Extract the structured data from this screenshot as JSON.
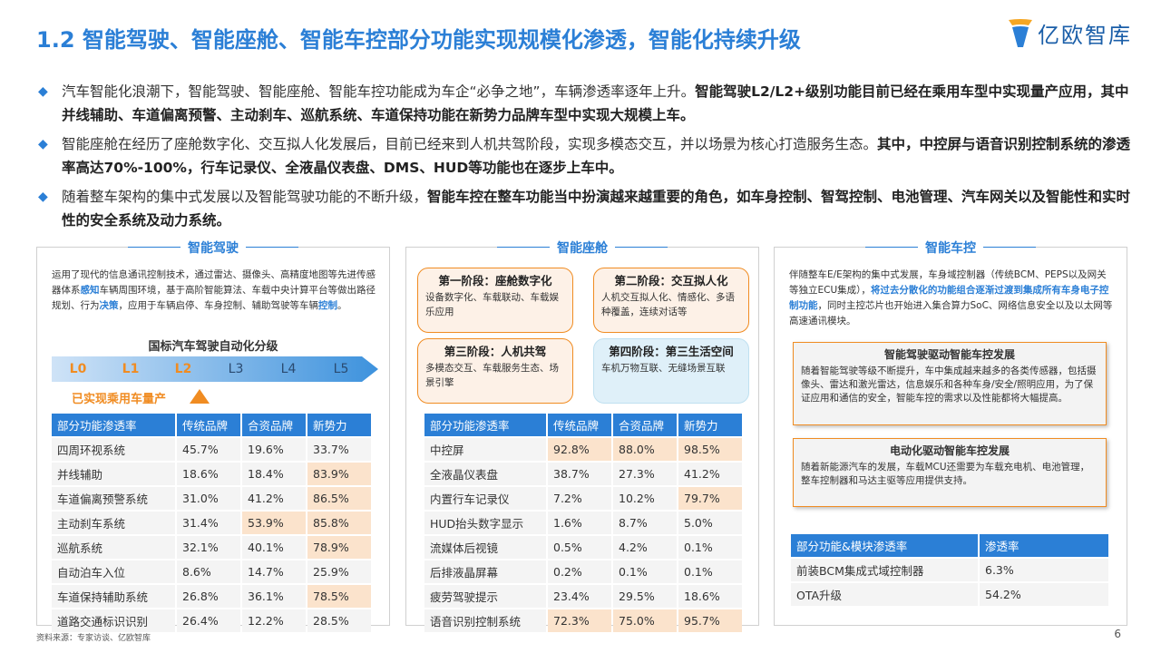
{
  "title": "1.2 智能驾驶、智能座舱、智能车控部分功能实现规模化渗透，智能化持续升级",
  "logo": {
    "text": "亿欧智库",
    "icon": "yiou-logo-icon"
  },
  "bullets": [
    {
      "normal": "汽车智能化浪潮下，智能驾驶、智能座舱、智能车控功能成为车企“必争之地”，车辆渗透率逐年上升。",
      "bold": "智能驾驶L2/L2+级别功能目前已经在乘用车型中实现量产应用，其中并线辅助、车道偏离预警、主动刹车、巡航系统、车道保持功能在新势力品牌车型中实现大规模上车。"
    },
    {
      "normal": "智能座舱在经历了座舱数字化、交互拟人化发展后，目前已经来到人机共驾阶段，实现多模态交互，并以场景为核心打造服务生态。",
      "bold": "其中，中控屏与语音识别控制系统的渗透率高达70%-100%，行车记录仪、全液晶仪表盘、DMS、HUD等功能也在逐步上车中。"
    },
    {
      "normal": "随着整车架构的集中式发展以及智能驾驶功能的不断升级，",
      "bold": "智能车控在整车功能当中扮演越来越重要的角色，如车身控制、智驾控制、电池管理、汽车网关以及智能性和实时性的安全系统及动力系统。"
    }
  ],
  "panel1": {
    "title": "智能驾驶",
    "desc_parts": [
      "运用了现代的信息通讯控制技术，通过雷达、摄像头、高精度地图等先进传感器体系",
      "感知",
      "车辆周围环境，基于高阶智能算法、车载中央计算平台等做出路径规划、行为",
      "决策",
      "，应用于车辆启停、车身控制、辅助驾驶等车辆",
      "控制",
      "。"
    ],
    "levels_title": "国标汽车驾驶自动化分级",
    "levels": [
      "L0",
      "L1",
      "L2",
      "L3",
      "L4",
      "L5"
    ],
    "levels_note": "已实现乘用车量产",
    "table": {
      "headers": [
        "部分功能渗透率",
        "传统品牌",
        "合资品牌",
        "新势力"
      ],
      "rows": [
        [
          "四周环视系统",
          "45.7%",
          "19.6%",
          "33.7%"
        ],
        [
          "并线辅助",
          "18.6%",
          "18.4%",
          "83.9%"
        ],
        [
          "车道偏离预警系统",
          "31.0%",
          "41.2%",
          "86.5%"
        ],
        [
          "主动刹车系统",
          "31.4%",
          "53.9%",
          "85.8%"
        ],
        [
          "巡航系统",
          "32.1%",
          "40.1%",
          "78.9%"
        ],
        [
          "自动泊车入位",
          "8.6%",
          "14.7%",
          "25.9%"
        ],
        [
          "车道保持辅助系统",
          "26.8%",
          "36.1%",
          "78.5%"
        ],
        [
          "道路交通标识识别",
          "26.4%",
          "12.2%",
          "28.5%"
        ]
      ]
    }
  },
  "panel2": {
    "title": "智能座舱",
    "stages": [
      {
        "title": "第一阶段：座舱数字化",
        "text": "设备数字化、车载联动、车载娱乐应用"
      },
      {
        "title": "第二阶段：交互拟人化",
        "text": "人机交互拟人化、情感化、多语种覆盖，连续对话等"
      },
      {
        "title": "第三阶段：人机共驾",
        "text": "多模态交互、车载服务生态、场景引擎"
      },
      {
        "title": "第四阶段：第三生活空间",
        "text": "车机万物互联、无缝场景互联"
      }
    ],
    "table": {
      "headers": [
        "部分功能渗透率",
        "传统品牌",
        "合资品牌",
        "新势力"
      ],
      "rows": [
        [
          "中控屏",
          "92.8%",
          "88.0%",
          "98.5%"
        ],
        [
          "全液晶仪表盘",
          "38.7%",
          "27.3%",
          "41.2%"
        ],
        [
          "内置行车记录仪",
          "7.2%",
          "10.2%",
          "79.7%"
        ],
        [
          "HUD抬头数字显示",
          "1.6%",
          "8.7%",
          "5.0%"
        ],
        [
          "流媒体后视镜",
          "0.5%",
          "4.2%",
          "0.1%"
        ],
        [
          "后排液晶屏幕",
          "0.2%",
          "0.1%",
          "0.1%"
        ],
        [
          "疲劳驾驶提示",
          "23.4%",
          "29.5%",
          "18.6%"
        ],
        [
          "语音识别控制系统",
          "72.3%",
          "75.0%",
          "95.7%"
        ]
      ]
    }
  },
  "panel3": {
    "title": "智能车控",
    "desc_normal": "伴随整车E/E架构的集中式发展，车身域控制器（传统BCM、PEPS以及网关等独立ECU集成），",
    "desc_hl": "将过去分散化的功能组合逐渐过渡到集成所有车身电子控制功能",
    "desc_tail": "，同时主控芯片也开始进入集合算力SoC、网络信息安全以及以太网等高速通讯模块。",
    "box1": {
      "title": "智能驾驶驱动智能车控发展",
      "text": "随着智能驾驶等级不断提升，车中集成越来越多的各类传感器，包括摄像头、雷达和激光雷达，信息娱乐和各种车身/安全/照明应用，为了保证应用和通信的安全，智能车控的需求以及性能都将大幅提高。"
    },
    "box2": {
      "title": "电动化驱动智能车控发展",
      "text": "随着新能源汽车的发展，车载MCU还需要为车载充电机、电池管理，整车控制器和马达主驱等应用提供支持。"
    },
    "table": {
      "headers": [
        "部分功能&模块渗透率",
        "渗透率"
      ],
      "rows": [
        [
          "前装BCM集成式域控制器",
          "6.3%"
        ],
        [
          "OTA升级",
          "54.2%"
        ]
      ]
    }
  },
  "source": "资料来源：专家访谈、亿欧智库",
  "page_number": "6"
}
